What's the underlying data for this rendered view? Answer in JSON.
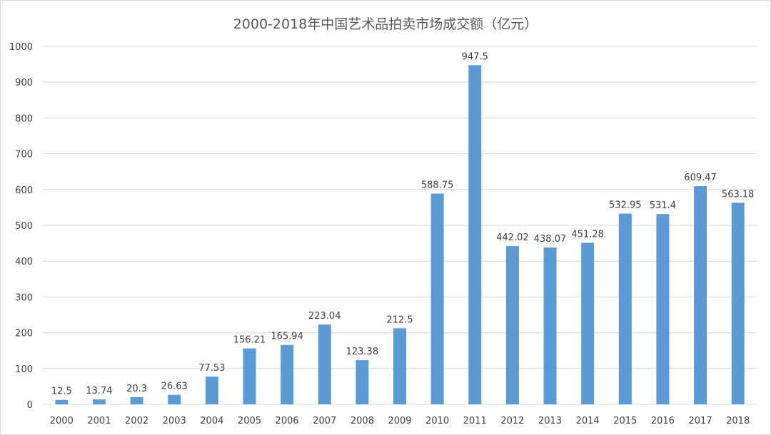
{
  "chart_data": {
    "type": "bar",
    "title": "2000-2018年中国艺术品拍卖市场成交额（亿元）",
    "categories": [
      "2000",
      "2001",
      "2002",
      "2003",
      "2004",
      "2005",
      "2006",
      "2007",
      "2008",
      "2009",
      "2010",
      "2011",
      "2012",
      "2013",
      "2014",
      "2015",
      "2016",
      "2017",
      "2018"
    ],
    "values": [
      12.5,
      13.74,
      20.3,
      26.63,
      77.53,
      156.21,
      165.94,
      223.04,
      123.38,
      212.5,
      588.75,
      947.5,
      442.02,
      438.07,
      451.28,
      532.95,
      531.4,
      609.47,
      563.18
    ],
    "data_labels": [
      "12.5",
      "13.74",
      "20.3",
      "26.63",
      "77.53",
      "156.21",
      "165.94",
      "223.04",
      "123.38",
      "212.5",
      "588.75",
      "947.5",
      "442.02",
      "438.07",
      "451.28",
      "532.95",
      "531.4",
      "609.47",
      "563.18"
    ],
    "yticks": [
      "0",
      "100",
      "200",
      "300",
      "400",
      "500",
      "600",
      "700",
      "800",
      "900",
      "1000"
    ],
    "ylim": [
      0,
      1000
    ],
    "xlabel": "",
    "ylabel": "",
    "grid": true,
    "legend": "none",
    "colors": {
      "bar": "#5b9bd5",
      "grid": "#d9d9d9",
      "text": "#404040",
      "title": "#595959"
    }
  }
}
